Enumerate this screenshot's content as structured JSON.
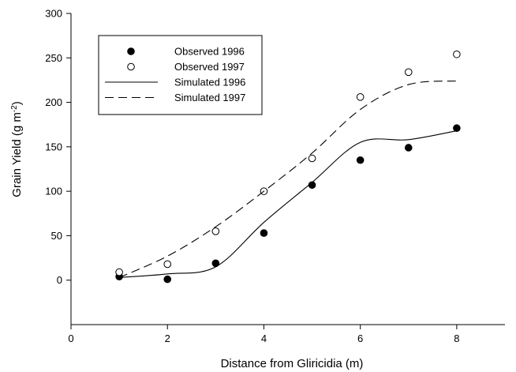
{
  "chart_data": {
    "type": "scatter",
    "title": "",
    "xlabel": "Distance from Gliricidia (m)",
    "ylabel_main": "Grain Yield (g m",
    "ylabel_sup": "-2",
    "ylabel_close": ")",
    "xlim": [
      0,
      9
    ],
    "ylim": [
      -50,
      300
    ],
    "xticks": [
      0,
      2,
      4,
      6,
      8
    ],
    "yticks": [
      0,
      50,
      100,
      150,
      200,
      250,
      300
    ],
    "grid": false,
    "legend_position": "top-left",
    "series": [
      {
        "name": "Observed 1996",
        "kind": "points",
        "marker": "filled-circle",
        "x": [
          1,
          2,
          3,
          4,
          5,
          6,
          7,
          8
        ],
        "y": [
          4,
          1,
          19,
          53,
          107,
          135,
          149,
          171
        ]
      },
      {
        "name": "Observed 1997",
        "kind": "points",
        "marker": "open-circle",
        "x": [
          1,
          2,
          3,
          4,
          5,
          6,
          7,
          8
        ],
        "y": [
          9,
          18,
          55,
          100,
          137,
          206,
          234,
          254
        ]
      },
      {
        "name": "Simulated 1996",
        "kind": "line",
        "style": "solid",
        "x": [
          1,
          2,
          3,
          4,
          5,
          6,
          7,
          8
        ],
        "y": [
          3,
          7,
          15,
          65,
          110,
          155,
          158,
          168
        ]
      },
      {
        "name": "Simulated 1997",
        "kind": "line",
        "style": "dashed",
        "x": [
          1,
          2,
          3,
          4,
          5,
          6,
          7,
          8
        ],
        "y": [
          3,
          27,
          60,
          100,
          143,
          192,
          220,
          224
        ]
      }
    ]
  }
}
